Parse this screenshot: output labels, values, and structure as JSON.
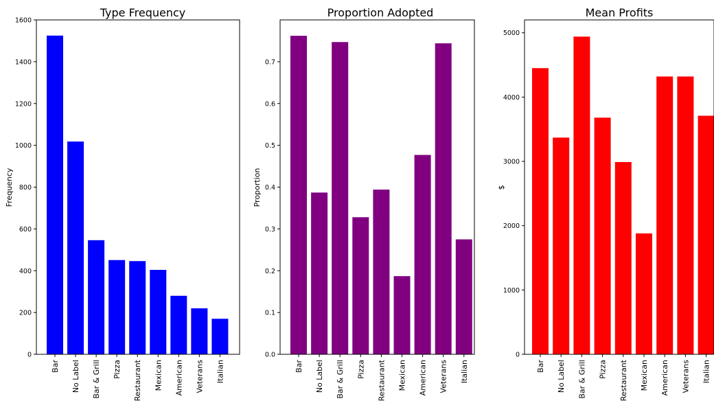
{
  "chart_data": [
    {
      "type": "bar",
      "title": "Type Frequency",
      "xlabel": "",
      "ylabel": "Frequency",
      "categories": [
        "Bar",
        "No Label",
        "Bar & Grill",
        "Pizza",
        "Restaurant",
        "Mexican",
        "American",
        "Veterans",
        "Italian"
      ],
      "values": [
        1525,
        1018,
        546,
        451,
        446,
        404,
        280,
        220,
        170
      ],
      "ylim": [
        0,
        1600
      ],
      "yticks": [
        0,
        200,
        400,
        600,
        800,
        1000,
        1200,
        1400,
        1600
      ],
      "ytick_labels": [
        "0",
        "200",
        "400",
        "600",
        "800",
        "1000",
        "1200",
        "1400",
        "1600"
      ],
      "color": "#0000ff",
      "grid": false
    },
    {
      "type": "bar",
      "title": "Proportion Adopted",
      "xlabel": "",
      "ylabel": "Proportion",
      "categories": [
        "Bar",
        "No Label",
        "Bar & Grill",
        "Pizza",
        "Restaurant",
        "Mexican",
        "American",
        "Veterans",
        "Italian"
      ],
      "values": [
        0.762,
        0.387,
        0.747,
        0.328,
        0.394,
        0.187,
        0.477,
        0.744,
        0.275
      ],
      "ylim": [
        0,
        0.8
      ],
      "yticks": [
        0,
        0.1,
        0.2,
        0.3,
        0.4,
        0.5,
        0.6,
        0.7
      ],
      "ytick_labels": [
        "0.0",
        "0.1",
        "0.2",
        "0.3",
        "0.4",
        "0.5",
        "0.6",
        "0.7"
      ],
      "color": "#800080",
      "grid": false
    },
    {
      "type": "bar",
      "title": "Mean Profits",
      "xlabel": "",
      "ylabel": "$",
      "categories": [
        "Bar",
        "No Label",
        "Bar & Grill",
        "Pizza",
        "Restaurant",
        "Mexican",
        "American",
        "Veterans",
        "Italian"
      ],
      "values": [
        4450,
        3370,
        4940,
        3680,
        2990,
        1880,
        4320,
        4320,
        3710
      ],
      "ylim": [
        0,
        5200
      ],
      "yticks": [
        0,
        1000,
        2000,
        3000,
        4000,
        5000
      ],
      "ytick_labels": [
        "0",
        "1000",
        "2000",
        "3000",
        "4000",
        "5000"
      ],
      "color": "#ff0000",
      "grid": false
    }
  ]
}
